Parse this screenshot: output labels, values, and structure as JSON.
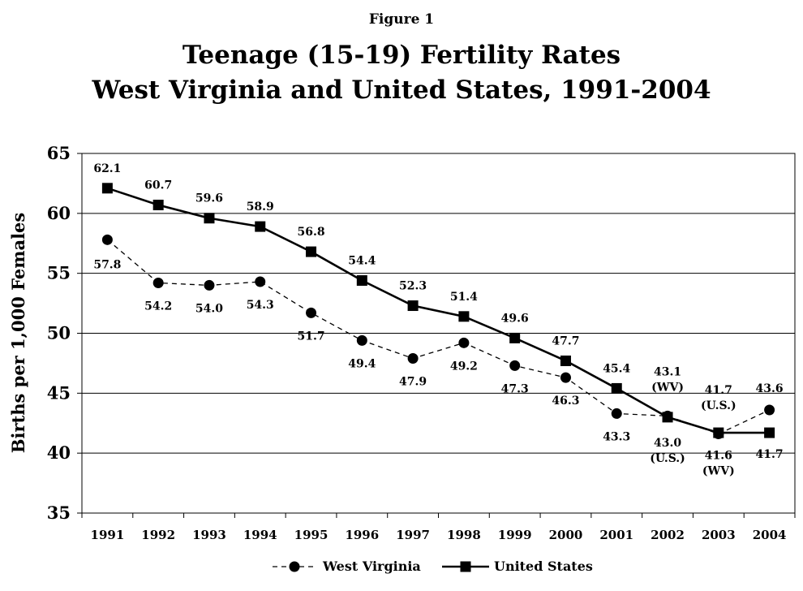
{
  "figure_label": "Figure 1",
  "chart_data": {
    "type": "line",
    "title": "Teenage (15-19) Fertility Rates",
    "subtitle": "West Virginia and United States, 1991-2004",
    "xlabel": "",
    "ylabel": "Births per 1,000 Females",
    "ylim": [
      35,
      65
    ],
    "yticks": [
      "35",
      "40",
      "45",
      "50",
      "55",
      "60",
      "65"
    ],
    "categories": [
      "1991",
      "1992",
      "1993",
      "1994",
      "1995",
      "1996",
      "1997",
      "1998",
      "1999",
      "2000",
      "2001",
      "2002",
      "2003",
      "2004"
    ],
    "grid": "horizontal",
    "legend": "bottom",
    "series": [
      {
        "name": "West Virginia",
        "style": "dashed",
        "marker": "circle",
        "values": [
          57.8,
          54.2,
          54.0,
          54.3,
          51.7,
          49.4,
          47.9,
          49.2,
          47.3,
          46.3,
          43.3,
          43.1,
          41.6,
          43.6
        ],
        "labels": [
          "57.8",
          "54.2",
          "54.0",
          "54.3",
          "51.7",
          "49.4",
          "47.9",
          "49.2",
          "47.3",
          "46.3",
          "43.3",
          "43.1 (WV)",
          "41.6 (WV)",
          "43.6"
        ]
      },
      {
        "name": "United States",
        "style": "solid",
        "marker": "square",
        "values": [
          62.1,
          60.7,
          59.6,
          58.9,
          56.8,
          54.4,
          52.3,
          51.4,
          49.6,
          47.7,
          45.4,
          43.0,
          41.7,
          41.7
        ],
        "labels": [
          "62.1",
          "60.7",
          "59.6",
          "58.9",
          "56.8",
          "54.4",
          "52.3",
          "51.4",
          "49.6",
          "47.7",
          "45.4",
          "43.0 (U.S.)",
          "41.7 (U.S.)",
          "41.7"
        ]
      }
    ]
  }
}
